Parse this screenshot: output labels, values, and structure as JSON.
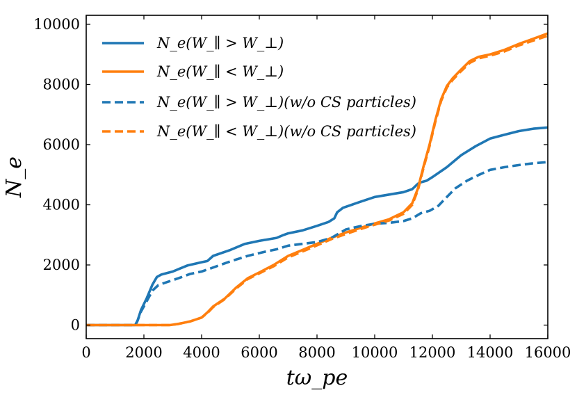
{
  "chart_data": {
    "type": "line",
    "title": "",
    "xlabel": "tω_pe",
    "ylabel": "N_e",
    "xlim": [
      0,
      16000
    ],
    "ylim": [
      -450,
      10300
    ],
    "xticks": [
      0,
      2000,
      4000,
      6000,
      8000,
      10000,
      12000,
      14000,
      16000
    ],
    "yticks": [
      0,
      2000,
      4000,
      6000,
      8000,
      10000
    ],
    "xtick_labels": [
      "0",
      "2000",
      "4000",
      "6000",
      "8000",
      "10000",
      "12000",
      "14000",
      "16000"
    ],
    "ytick_labels": [
      "0",
      "2000",
      "4000",
      "6000",
      "8000",
      "10000"
    ],
    "grid": false,
    "legend_position": "top-left",
    "series": [
      {
        "name": "N_e(W_∥ > W_⊥)",
        "color": "#1f77b4",
        "style": "solid",
        "x": [
          0,
          1700,
          1780,
          1900,
          2100,
          2300,
          2450,
          2600,
          3000,
          3500,
          4000,
          4200,
          4400,
          5000,
          5500,
          6000,
          6600,
          6800,
          7000,
          7500,
          8000,
          8400,
          8600,
          8700,
          8900,
          9500,
          10000,
          11000,
          11300,
          11500,
          11600,
          11800,
          12000,
          12500,
          13000,
          13500,
          14000,
          14500,
          15000,
          15500,
          16000
        ],
        "values": [
          0,
          0,
          150,
          500,
          900,
          1350,
          1600,
          1680,
          1780,
          1980,
          2090,
          2130,
          2300,
          2500,
          2700,
          2800,
          2900,
          2980,
          3050,
          3150,
          3300,
          3430,
          3550,
          3750,
          3900,
          4100,
          4260,
          4420,
          4520,
          4700,
          4750,
          4800,
          4920,
          5250,
          5650,
          5950,
          6200,
          6330,
          6450,
          6530,
          6570
        ]
      },
      {
        "name": "N_e(W_∥ < W_⊥)",
        "color": "#ff7f0e",
        "style": "solid",
        "x": [
          0,
          2000,
          2900,
          3200,
          3600,
          4000,
          4200,
          4400,
          4800,
          5200,
          5600,
          6000,
          6500,
          7000,
          7500,
          8000,
          8500,
          9000,
          9500,
          10000,
          10500,
          11000,
          11300,
          11500,
          11700,
          11900,
          12100,
          12300,
          12500,
          12700,
          13000,
          13300,
          13600,
          14000,
          14500,
          15000,
          15500,
          16000
        ],
        "values": [
          0,
          0,
          0,
          40,
          120,
          250,
          420,
          620,
          880,
          1250,
          1560,
          1750,
          2000,
          2300,
          2500,
          2700,
          2900,
          3080,
          3230,
          3380,
          3520,
          3750,
          4050,
          4550,
          5300,
          6000,
          6800,
          7500,
          7950,
          8200,
          8500,
          8780,
          8920,
          9000,
          9150,
          9350,
          9520,
          9700
        ]
      },
      {
        "name": "N_e(W_∥ > W_⊥)(w/o CS particles)",
        "color": "#1f77b4",
        "style": "dashed",
        "x": [
          0,
          1700,
          1780,
          1900,
          2100,
          2300,
          2500,
          2800,
          3200,
          3600,
          4000,
          4300,
          5000,
          5600,
          6200,
          6600,
          7000,
          7500,
          8000,
          8500,
          9000,
          9500,
          10000,
          10500,
          11000,
          11300,
          11600,
          11900,
          12200,
          12500,
          12800,
          13200,
          13600,
          14000,
          14500,
          15000,
          15500,
          16000
        ],
        "values": [
          0,
          0,
          150,
          450,
          800,
          1150,
          1330,
          1430,
          1560,
          1700,
          1780,
          1880,
          2120,
          2300,
          2440,
          2520,
          2640,
          2700,
          2760,
          2900,
          3180,
          3290,
          3370,
          3400,
          3460,
          3550,
          3720,
          3800,
          3960,
          4260,
          4550,
          4800,
          4990,
          5160,
          5250,
          5320,
          5380,
          5420
        ]
      },
      {
        "name": "N_e(W_∥ < W_⊥)(w/o CS particles)",
        "color": "#ff7f0e",
        "style": "dashed",
        "x": [
          0,
          2000,
          2900,
          3200,
          3600,
          4000,
          4200,
          4400,
          4800,
          5200,
          5600,
          6000,
          6500,
          7000,
          7500,
          8000,
          8500,
          9000,
          9500,
          10000,
          10500,
          11000,
          11300,
          11500,
          11700,
          11900,
          12100,
          12300,
          12500,
          12700,
          13000,
          13300,
          13600,
          14000,
          14500,
          15000,
          15500,
          16000
        ],
        "values": [
          0,
          0,
          0,
          40,
          120,
          250,
          400,
          600,
          860,
          1220,
          1530,
          1720,
          1960,
          2250,
          2450,
          2650,
          2860,
          3030,
          3190,
          3340,
          3480,
          3700,
          4000,
          4500,
          5250,
          5950,
          6750,
          7450,
          7900,
          8150,
          8450,
          8720,
          8870,
          8960,
          9100,
          9300,
          9460,
          9620
        ]
      }
    ]
  }
}
